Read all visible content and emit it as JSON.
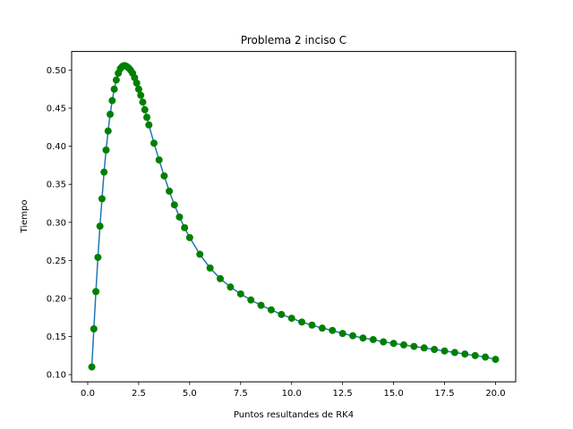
{
  "chart_data": {
    "type": "line",
    "title": "Problema 2 inciso C",
    "xlabel": "Puntos resultandes de RK4",
    "ylabel": "Tiempo",
    "xlim": [
      -0.79,
      20.99
    ],
    "ylim": [
      0.0905,
      0.5245
    ],
    "x_ticks": [
      0.0,
      2.5,
      5.0,
      7.5,
      10.0,
      12.5,
      15.0,
      17.5,
      20.0
    ],
    "x_tick_labels": [
      "0.0",
      "2.5",
      "5.0",
      "7.5",
      "10.0",
      "12.5",
      "15.0",
      "17.5",
      "20.0"
    ],
    "y_ticks": [
      0.1,
      0.15,
      0.2,
      0.25,
      0.3,
      0.35,
      0.4,
      0.45,
      0.5
    ],
    "y_tick_labels": [
      "0.10",
      "0.15",
      "0.20",
      "0.25",
      "0.30",
      "0.35",
      "0.40",
      "0.45",
      "0.50"
    ],
    "grid": false,
    "legend": "none",
    "series": [
      {
        "style": "line",
        "color": "#1f77b4",
        "x": [
          0.2,
          0.3,
          0.4,
          0.5,
          0.6,
          0.7,
          0.8,
          0.9,
          1.0,
          1.1,
          1.2,
          1.3,
          1.4,
          1.5,
          1.6,
          1.7,
          1.8,
          1.9,
          2.0,
          2.1,
          2.2,
          2.3,
          2.4,
          2.5,
          2.6,
          2.7,
          2.8,
          2.9,
          3.0,
          3.25,
          3.5,
          3.75,
          4.0,
          4.25,
          4.5,
          4.75,
          5.0,
          5.5,
          6.0,
          6.5,
          7.0,
          7.5,
          8.0,
          8.5,
          9.0,
          9.5,
          10.0,
          10.5,
          11.0,
          11.5,
          12.0,
          12.5,
          13.0,
          13.5,
          14.0,
          14.5,
          15.0,
          15.5,
          16.0,
          16.5,
          17.0,
          17.5,
          18.0,
          18.5,
          19.0,
          19.5,
          20.0
        ],
        "y": [
          0.11,
          0.16,
          0.209,
          0.254,
          0.295,
          0.331,
          0.366,
          0.395,
          0.42,
          0.442,
          0.46,
          0.475,
          0.487,
          0.496,
          0.502,
          0.505,
          0.506,
          0.505,
          0.503,
          0.5,
          0.496,
          0.49,
          0.483,
          0.475,
          0.467,
          0.458,
          0.448,
          0.438,
          0.428,
          0.404,
          0.382,
          0.361,
          0.341,
          0.323,
          0.307,
          0.293,
          0.28,
          0.258,
          0.24,
          0.226,
          0.215,
          0.206,
          0.198,
          0.191,
          0.185,
          0.179,
          0.174,
          0.169,
          0.165,
          0.161,
          0.158,
          0.154,
          0.151,
          0.148,
          0.146,
          0.143,
          0.141,
          0.139,
          0.137,
          0.135,
          0.133,
          0.131,
          0.129,
          0.127,
          0.125,
          0.123,
          0.12
        ]
      },
      {
        "style": "markers",
        "color": "#008000",
        "x": [
          0.2,
          0.3,
          0.4,
          0.5,
          0.6,
          0.7,
          0.8,
          0.9,
          1.0,
          1.1,
          1.2,
          1.3,
          1.4,
          1.5,
          1.6,
          1.7,
          1.8,
          1.9,
          2.0,
          2.1,
          2.2,
          2.3,
          2.4,
          2.5,
          2.6,
          2.7,
          2.8,
          2.9,
          3.0,
          3.25,
          3.5,
          3.75,
          4.0,
          4.25,
          4.5,
          4.75,
          5.0,
          5.5,
          6.0,
          6.5,
          7.0,
          7.5,
          8.0,
          8.5,
          9.0,
          9.5,
          10.0,
          10.5,
          11.0,
          11.5,
          12.0,
          12.5,
          13.0,
          13.5,
          14.0,
          14.5,
          15.0,
          15.5,
          16.0,
          16.5,
          17.0,
          17.5,
          18.0,
          18.5,
          19.0,
          19.5,
          20.0
        ],
        "y": [
          0.11,
          0.16,
          0.209,
          0.254,
          0.295,
          0.331,
          0.366,
          0.395,
          0.42,
          0.442,
          0.46,
          0.475,
          0.487,
          0.496,
          0.502,
          0.505,
          0.506,
          0.505,
          0.503,
          0.5,
          0.496,
          0.49,
          0.483,
          0.475,
          0.467,
          0.458,
          0.448,
          0.438,
          0.428,
          0.404,
          0.382,
          0.361,
          0.341,
          0.323,
          0.307,
          0.293,
          0.28,
          0.258,
          0.24,
          0.226,
          0.215,
          0.206,
          0.198,
          0.191,
          0.185,
          0.179,
          0.174,
          0.169,
          0.165,
          0.161,
          0.158,
          0.154,
          0.151,
          0.148,
          0.146,
          0.143,
          0.141,
          0.139,
          0.137,
          0.135,
          0.133,
          0.131,
          0.129,
          0.127,
          0.125,
          0.123,
          0.12
        ]
      }
    ]
  }
}
